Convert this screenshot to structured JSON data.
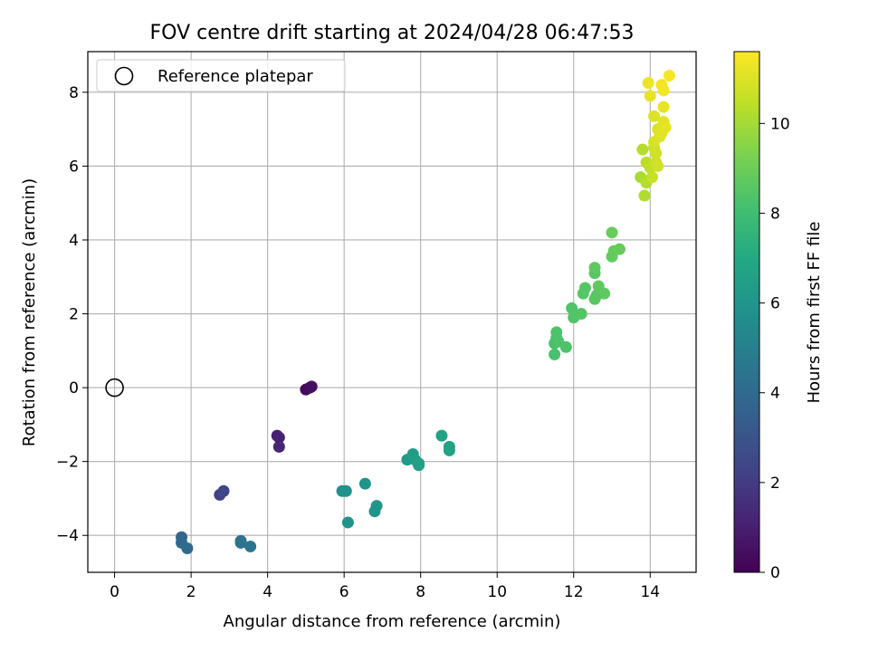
{
  "chart_data": {
    "type": "scatter",
    "title": "FOV centre drift starting at 2024/04/28 06:47:53",
    "xlabel": "Angular distance from reference (arcmin)",
    "ylabel": "Rotation from reference (arcmin)",
    "xlim": [
      -0.7,
      15.2
    ],
    "ylim": [
      -5.0,
      9.1
    ],
    "xticks": [
      0,
      2,
      4,
      6,
      8,
      10,
      12,
      14
    ],
    "yticks": [
      -4,
      -2,
      0,
      2,
      4,
      6,
      8
    ],
    "grid": true,
    "legend": {
      "location": "upper-left",
      "entries": [
        "Reference platepar"
      ]
    },
    "colorbar": {
      "label": "Hours from first FF file",
      "range": [
        0,
        11.6
      ],
      "ticks": [
        0,
        2,
        4,
        6,
        8,
        10
      ],
      "colormap": "viridis"
    },
    "reference_point": {
      "label": "Reference platepar",
      "x": 0,
      "y": 0
    },
    "points": [
      {
        "x": 5.0,
        "y": -0.05,
        "c": 0.3
      },
      {
        "x": 5.1,
        "y": 0.0,
        "c": 0.4
      },
      {
        "x": 5.15,
        "y": 0.03,
        "c": 0.5
      },
      {
        "x": 4.25,
        "y": -1.3,
        "c": 1.0
      },
      {
        "x": 4.3,
        "y": -1.35,
        "c": 1.1
      },
      {
        "x": 4.3,
        "y": -1.6,
        "c": 1.2
      },
      {
        "x": 2.75,
        "y": -2.9,
        "c": 2.2
      },
      {
        "x": 2.85,
        "y": -2.8,
        "c": 2.4
      },
      {
        "x": 1.75,
        "y": -4.05,
        "c": 3.8
      },
      {
        "x": 1.75,
        "y": -4.2,
        "c": 3.9
      },
      {
        "x": 1.9,
        "y": -4.35,
        "c": 4.0
      },
      {
        "x": 3.3,
        "y": -4.15,
        "c": 4.3
      },
      {
        "x": 3.3,
        "y": -4.2,
        "c": 4.4
      },
      {
        "x": 3.55,
        "y": -4.3,
        "c": 4.5
      },
      {
        "x": 5.95,
        "y": -2.8,
        "c": 5.8
      },
      {
        "x": 6.05,
        "y": -2.8,
        "c": 5.9
      },
      {
        "x": 6.1,
        "y": -3.65,
        "c": 5.9
      },
      {
        "x": 6.55,
        "y": -2.6,
        "c": 6.0
      },
      {
        "x": 6.8,
        "y": -3.35,
        "c": 6.0
      },
      {
        "x": 6.85,
        "y": -3.2,
        "c": 6.1
      },
      {
        "x": 7.65,
        "y": -1.95,
        "c": 6.3
      },
      {
        "x": 7.8,
        "y": -1.8,
        "c": 6.4
      },
      {
        "x": 7.85,
        "y": -1.95,
        "c": 6.4
      },
      {
        "x": 7.95,
        "y": -2.05,
        "c": 6.5
      },
      {
        "x": 7.95,
        "y": -2.1,
        "c": 6.5
      },
      {
        "x": 8.55,
        "y": -1.3,
        "c": 6.6
      },
      {
        "x": 8.75,
        "y": -1.6,
        "c": 6.7
      },
      {
        "x": 8.75,
        "y": -1.7,
        "c": 6.7
      },
      {
        "x": 11.5,
        "y": 1.2,
        "c": 8.2
      },
      {
        "x": 11.55,
        "y": 1.35,
        "c": 8.2
      },
      {
        "x": 11.55,
        "y": 1.5,
        "c": 8.3
      },
      {
        "x": 11.6,
        "y": 1.25,
        "c": 8.3
      },
      {
        "x": 11.5,
        "y": 0.9,
        "c": 8.2
      },
      {
        "x": 11.8,
        "y": 1.1,
        "c": 8.3
      },
      {
        "x": 11.95,
        "y": 2.15,
        "c": 8.4
      },
      {
        "x": 12.0,
        "y": 1.9,
        "c": 8.4
      },
      {
        "x": 12.2,
        "y": 2.0,
        "c": 8.5
      },
      {
        "x": 12.25,
        "y": 2.55,
        "c": 8.5
      },
      {
        "x": 12.3,
        "y": 2.7,
        "c": 8.5
      },
      {
        "x": 12.55,
        "y": 2.4,
        "c": 8.6
      },
      {
        "x": 12.6,
        "y": 2.5,
        "c": 8.6
      },
      {
        "x": 12.55,
        "y": 3.1,
        "c": 8.6
      },
      {
        "x": 12.55,
        "y": 3.25,
        "c": 8.7
      },
      {
        "x": 12.65,
        "y": 2.75,
        "c": 8.7
      },
      {
        "x": 12.8,
        "y": 2.55,
        "c": 8.7
      },
      {
        "x": 13.0,
        "y": 3.55,
        "c": 8.8
      },
      {
        "x": 13.05,
        "y": 3.7,
        "c": 8.8
      },
      {
        "x": 13.2,
        "y": 3.75,
        "c": 8.9
      },
      {
        "x": 13.0,
        "y": 4.2,
        "c": 8.9
      },
      {
        "x": 13.75,
        "y": 5.7,
        "c": 10.1
      },
      {
        "x": 13.8,
        "y": 6.45,
        "c": 10.3
      },
      {
        "x": 13.85,
        "y": 5.2,
        "c": 10.2
      },
      {
        "x": 13.9,
        "y": 5.55,
        "c": 10.3
      },
      {
        "x": 13.9,
        "y": 6.1,
        "c": 10.4
      },
      {
        "x": 14.0,
        "y": 5.95,
        "c": 10.5
      },
      {
        "x": 14.05,
        "y": 5.7,
        "c": 10.6
      },
      {
        "x": 14.1,
        "y": 6.5,
        "c": 10.6
      },
      {
        "x": 14.15,
        "y": 6.1,
        "c": 10.7
      },
      {
        "x": 14.2,
        "y": 6.0,
        "c": 10.8
      },
      {
        "x": 14.1,
        "y": 7.35,
        "c": 11.0
      },
      {
        "x": 14.2,
        "y": 7.0,
        "c": 11.0
      },
      {
        "x": 14.25,
        "y": 6.8,
        "c": 11.0
      },
      {
        "x": 14.3,
        "y": 6.9,
        "c": 11.1
      },
      {
        "x": 14.35,
        "y": 7.2,
        "c": 11.1
      },
      {
        "x": 14.4,
        "y": 7.05,
        "c": 11.2
      },
      {
        "x": 14.35,
        "y": 7.6,
        "c": 11.2
      },
      {
        "x": 14.0,
        "y": 7.9,
        "c": 11.2
      },
      {
        "x": 13.95,
        "y": 8.25,
        "c": 11.3
      },
      {
        "x": 14.3,
        "y": 8.2,
        "c": 11.4
      },
      {
        "x": 14.35,
        "y": 8.05,
        "c": 11.4
      },
      {
        "x": 14.5,
        "y": 8.45,
        "c": 11.5
      },
      {
        "x": 14.1,
        "y": 6.65,
        "c": 10.9
      },
      {
        "x": 14.15,
        "y": 6.35,
        "c": 10.8
      }
    ]
  }
}
